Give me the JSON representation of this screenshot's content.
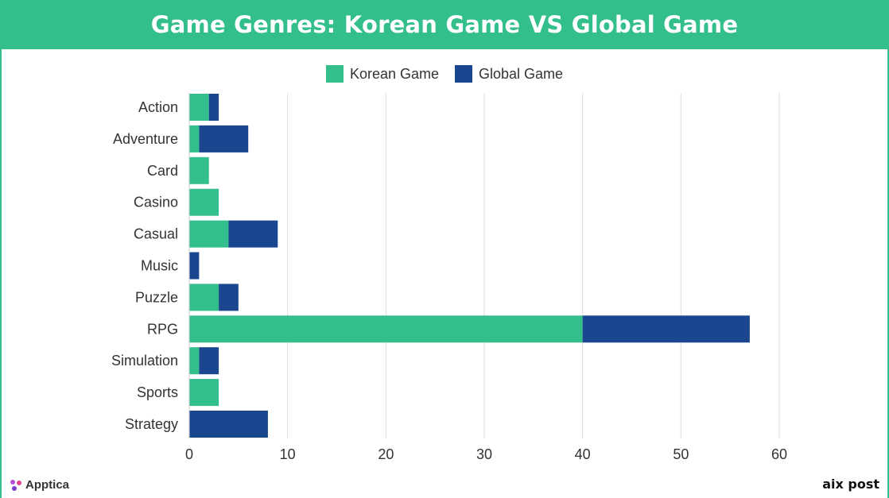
{
  "title": "Game Genres: Korean Game VS Global Game",
  "colors": {
    "korean": "#32bf8b",
    "global": "#1a4690",
    "header": "#32bf8b",
    "grid": "#dddddd"
  },
  "legend": {
    "korean_label": "Korean Game",
    "global_label": "Global Game"
  },
  "footer": {
    "left_brand": "Apptica",
    "right_brand": "aix post"
  },
  "chart_data": {
    "type": "bar",
    "orientation": "horizontal",
    "stacked": true,
    "title": "Game Genres: Korean Game VS Global Game",
    "categories": [
      "Action",
      "Adventure",
      "Card",
      "Casino",
      "Casual",
      "Music",
      "Puzzle",
      "RPG",
      "Simulation",
      "Sports",
      "Strategy"
    ],
    "series": [
      {
        "name": "Korean Game",
        "values": [
          2,
          1,
          2,
          3,
          4,
          0,
          3,
          40,
          1,
          3,
          0
        ]
      },
      {
        "name": "Global Game",
        "values": [
          1,
          5,
          0,
          0,
          5,
          1,
          2,
          17,
          2,
          0,
          8
        ]
      }
    ],
    "xlim": [
      0,
      60
    ],
    "xticks": [
      0,
      10,
      20,
      30,
      40,
      50,
      60
    ],
    "grid": true,
    "legend_position": "top"
  }
}
